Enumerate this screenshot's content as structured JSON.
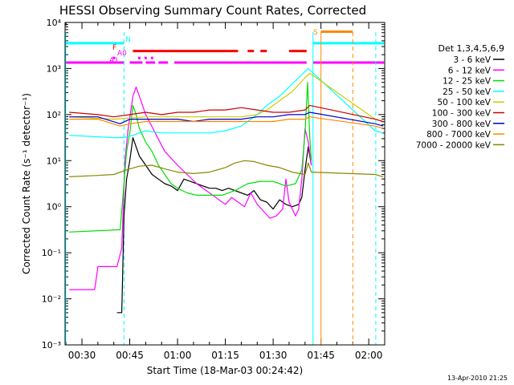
{
  "chart_data": {
    "type": "line",
    "title": "HESSI Observing Summary Count Rates, Corrected",
    "xlabel": "Start Time (18-Mar-03 00:24:42)",
    "ylabel": "Corrected Count Rate (s⁻¹ detector⁻¹)",
    "footer": "13-Apr-2010 21:25",
    "x_unit": "minutes",
    "xlim": [
      24.7,
      125
    ],
    "ylim": [
      -3,
      4
    ],
    "y_scale": "log",
    "y_ticks": [
      {
        "exp": -3,
        "label": "10⁻³"
      },
      {
        "exp": -2,
        "label": "10⁻²"
      },
      {
        "exp": -1,
        "label": "10⁻¹"
      },
      {
        "exp": 0,
        "label": "10⁰"
      },
      {
        "exp": 1,
        "label": "10¹"
      },
      {
        "exp": 2,
        "label": "10²"
      },
      {
        "exp": 3,
        "label": "10³"
      },
      {
        "exp": 4,
        "label": "10⁴"
      }
    ],
    "x_ticks": [
      {
        "x": 30,
        "label": "00:30"
      },
      {
        "x": 45,
        "label": "00:45"
      },
      {
        "x": 60,
        "label": "01:00"
      },
      {
        "x": 75,
        "label": "01:15"
      },
      {
        "x": 90,
        "label": "01:30"
      },
      {
        "x": 105,
        "label": "01:45"
      },
      {
        "x": 120,
        "label": "02:00"
      }
    ],
    "legend": {
      "header": "Det 1,3,4,5,6,9",
      "position": "right"
    },
    "series": [
      {
        "name": "3 - 6 keV",
        "color": "#000000",
        "points": [
          [
            41,
            -2.3
          ],
          [
            42.5,
            -2.3
          ],
          [
            43.2,
            -0.2
          ],
          [
            44,
            0.6
          ],
          [
            45,
            1.0
          ],
          [
            46,
            1.5
          ],
          [
            47,
            1.3
          ],
          [
            48,
            1.1
          ],
          [
            50,
            0.9
          ],
          [
            52,
            0.7
          ],
          [
            54,
            0.6
          ],
          [
            56,
            0.5
          ],
          [
            58,
            0.45
          ],
          [
            60,
            0.35
          ],
          [
            62,
            0.6
          ],
          [
            64,
            0.55
          ],
          [
            66,
            0.5
          ],
          [
            68,
            0.45
          ],
          [
            70,
            0.4
          ],
          [
            72,
            0.4
          ],
          [
            74,
            0.35
          ],
          [
            76,
            0.4
          ],
          [
            78,
            0.35
          ],
          [
            80,
            0.3
          ],
          [
            82,
            0.25
          ],
          [
            84,
            0.35
          ],
          [
            86,
            0.15
          ],
          [
            88,
            0.1
          ],
          [
            90,
            -0.05
          ],
          [
            92,
            0.15
          ],
          [
            94,
            0.05
          ],
          [
            96,
            0.0
          ],
          [
            98,
            0.05
          ],
          [
            99,
            0.2
          ],
          [
            100,
            0.8
          ],
          [
            101,
            1.3
          ],
          [
            102,
            0.9
          ]
        ]
      },
      {
        "name": "6 - 12 keV",
        "color": "#ff00ff",
        "points": [
          [
            26,
            -1.8
          ],
          [
            34,
            -1.8
          ],
          [
            35,
            -1.3
          ],
          [
            41,
            -1.3
          ],
          [
            42.5,
            -0.9
          ],
          [
            43.5,
            1.0
          ],
          [
            44.5,
            1.7
          ],
          [
            46,
            2.4
          ],
          [
            47,
            2.6
          ],
          [
            48,
            2.4
          ],
          [
            50,
            2.0
          ],
          [
            53,
            1.6
          ],
          [
            56,
            1.2
          ],
          [
            60,
            0.9
          ],
          [
            63,
            0.7
          ],
          [
            66,
            0.5
          ],
          [
            69,
            0.35
          ],
          [
            72,
            0.2
          ],
          [
            75,
            0.05
          ],
          [
            77,
            0.2
          ],
          [
            79,
            0.1
          ],
          [
            81,
            0.0
          ],
          [
            83,
            0.3
          ],
          [
            85,
            0.05
          ],
          [
            87,
            -0.1
          ],
          [
            89,
            -0.25
          ],
          [
            91,
            -0.2
          ],
          [
            93,
            -0.05
          ],
          [
            94,
            0.6
          ],
          [
            95,
            0.1
          ],
          [
            97,
            -0.2
          ],
          [
            98,
            -0.05
          ],
          [
            99,
            0.6
          ],
          [
            100,
            1.7
          ],
          [
            101,
            1.4
          ],
          [
            102,
            0.9
          ]
        ]
      },
      {
        "name": "12 - 25 keV",
        "color": "#00dd00",
        "points": [
          [
            26,
            -0.55
          ],
          [
            42,
            -0.5
          ],
          [
            43.2,
            0.5
          ],
          [
            44,
            1.2
          ],
          [
            45,
            1.6
          ],
          [
            46,
            2.2
          ],
          [
            47,
            2.0
          ],
          [
            48,
            1.7
          ],
          [
            50,
            1.4
          ],
          [
            52,
            1.2
          ],
          [
            54,
            0.9
          ],
          [
            56,
            0.7
          ],
          [
            58,
            0.5
          ],
          [
            60,
            0.4
          ],
          [
            63,
            0.3
          ],
          [
            66,
            0.25
          ],
          [
            70,
            0.25
          ],
          [
            74,
            0.25
          ],
          [
            78,
            0.35
          ],
          [
            82,
            0.5
          ],
          [
            86,
            0.55
          ],
          [
            90,
            0.55
          ],
          [
            94,
            0.45
          ],
          [
            97,
            0.5
          ],
          [
            99,
            0.8
          ],
          [
            100,
            1.6
          ],
          [
            100.8,
            2.7
          ],
          [
            101.5,
            1.5
          ],
          [
            102,
            1.0
          ]
        ]
      },
      {
        "name": "25 - 50 keV",
        "color": "#00ffff",
        "points": [
          [
            26,
            1.55
          ],
          [
            40,
            1.5
          ],
          [
            43,
            1.5
          ],
          [
            46,
            1.55
          ],
          [
            50,
            1.65
          ],
          [
            55,
            1.6
          ],
          [
            60,
            1.6
          ],
          [
            65,
            1.6
          ],
          [
            70,
            1.6
          ],
          [
            75,
            1.65
          ],
          [
            80,
            1.75
          ],
          [
            85,
            2.0
          ],
          [
            88,
            2.2
          ],
          [
            92,
            2.4
          ],
          [
            95,
            2.6
          ],
          [
            98,
            2.8
          ],
          [
            101,
            3.0
          ],
          [
            122,
            1.65
          ],
          [
            124.5,
            1.6
          ]
        ]
      },
      {
        "name": "50 - 100 keV",
        "color": "#cccc00",
        "points": [
          [
            26,
            1.95
          ],
          [
            40,
            1.9
          ],
          [
            50,
            1.95
          ],
          [
            60,
            1.95
          ],
          [
            70,
            1.95
          ],
          [
            80,
            1.95
          ],
          [
            85,
            2.0
          ],
          [
            88,
            2.1
          ],
          [
            92,
            2.3
          ],
          [
            96,
            2.5
          ],
          [
            100,
            2.8
          ],
          [
            101.5,
            2.9
          ],
          [
            122,
            1.9
          ],
          [
            124.5,
            1.85
          ]
        ]
      },
      {
        "name": "100 - 300 keV",
        "color": "#cc0000",
        "points": [
          [
            26,
            2.05
          ],
          [
            35,
            2.0
          ],
          [
            40,
            1.95
          ],
          [
            45,
            2.0
          ],
          [
            50,
            2.05
          ],
          [
            55,
            2.0
          ],
          [
            60,
            2.05
          ],
          [
            65,
            2.05
          ],
          [
            70,
            2.1
          ],
          [
            75,
            2.1
          ],
          [
            80,
            2.15
          ],
          [
            85,
            2.1
          ],
          [
            90,
            2.05
          ],
          [
            95,
            2.05
          ],
          [
            100,
            2.1
          ],
          [
            101.5,
            2.2
          ],
          [
            122,
            1.9
          ],
          [
            124.5,
            1.85
          ]
        ]
      },
      {
        "name": "300 - 800 keV",
        "color": "#0000cc",
        "points": [
          [
            26,
            1.95
          ],
          [
            35,
            1.95
          ],
          [
            42,
            1.8
          ],
          [
            45,
            1.9
          ],
          [
            50,
            1.9
          ],
          [
            55,
            1.9
          ],
          [
            60,
            1.9
          ],
          [
            65,
            1.85
          ],
          [
            70,
            1.9
          ],
          [
            75,
            1.9
          ],
          [
            80,
            1.9
          ],
          [
            85,
            1.95
          ],
          [
            90,
            1.95
          ],
          [
            95,
            2.0
          ],
          [
            100,
            2.0
          ],
          [
            101.5,
            2.05
          ],
          [
            122,
            1.8
          ],
          [
            124.5,
            1.75
          ]
        ]
      },
      {
        "name": "800 - 7000 keV",
        "color": "#ff8800",
        "points": [
          [
            26,
            1.9
          ],
          [
            35,
            1.9
          ],
          [
            42,
            1.75
          ],
          [
            45,
            1.8
          ],
          [
            50,
            1.85
          ],
          [
            55,
            1.85
          ],
          [
            60,
            1.85
          ],
          [
            65,
            1.85
          ],
          [
            70,
            1.85
          ],
          [
            75,
            1.85
          ],
          [
            80,
            1.85
          ],
          [
            85,
            1.85
          ],
          [
            90,
            1.85
          ],
          [
            95,
            1.9
          ],
          [
            100,
            1.9
          ],
          [
            101.5,
            1.95
          ],
          [
            122,
            1.75
          ],
          [
            124.5,
            1.7
          ]
        ]
      },
      {
        "name": "7000 - 20000 keV",
        "color": "#888800",
        "points": [
          [
            26,
            0.65
          ],
          [
            35,
            0.68
          ],
          [
            40,
            0.7
          ],
          [
            44,
            0.8
          ],
          [
            48,
            0.88
          ],
          [
            52,
            0.9
          ],
          [
            56,
            0.82
          ],
          [
            60,
            0.75
          ],
          [
            65,
            0.72
          ],
          [
            70,
            0.75
          ],
          [
            75,
            0.85
          ],
          [
            78,
            0.95
          ],
          [
            81,
            1.0
          ],
          [
            84,
            0.98
          ],
          [
            88,
            0.9
          ],
          [
            92,
            0.85
          ],
          [
            96,
            0.75
          ],
          [
            100,
            0.7
          ],
          [
            101,
            0.95
          ],
          [
            102,
            0.75
          ],
          [
            122,
            0.7
          ],
          [
            124.5,
            0.65
          ]
        ]
      }
    ],
    "flag_bars": [
      {
        "label": "N",
        "color": "#00ffff",
        "y_level": 3.55,
        "segments": [
          [
            24.7,
            43.2
          ],
          [
            102.5,
            124.8
          ]
        ]
      },
      {
        "label": "S",
        "color": "#ff8800",
        "y_level": 3.8,
        "segments": [
          [
            105,
            115
          ]
        ]
      },
      {
        "label": "F",
        "color": "#ff0000",
        "y_level": 3.38,
        "segments": [
          [
            46,
            79
          ],
          [
            82,
            84
          ],
          [
            86,
            88
          ],
          [
            95,
            100.5
          ]
        ]
      },
      {
        "label": "A0",
        "color": "#ff00ff",
        "y_level": 3.23,
        "segments": [
          [
            40,
            40
          ],
          [
            48,
            48
          ],
          [
            50,
            50
          ],
          [
            52,
            52
          ]
        ]
      },
      {
        "label": "A1",
        "color": "#ff00ff",
        "y_level": 3.13,
        "segments": [
          [
            24.7,
            43.2
          ],
          [
            45,
            49
          ],
          [
            50,
            53
          ],
          [
            54,
            57
          ],
          [
            59,
            100.5
          ],
          [
            102.5,
            124.8
          ]
        ]
      }
    ],
    "vertical_markers": [
      {
        "x": 43.2,
        "color": "#00ffff",
        "style": "dashed"
      },
      {
        "x": 102.5,
        "color": "#00ffff",
        "style": "solid"
      },
      {
        "x": 105,
        "color": "#ff8800",
        "style": "solid"
      },
      {
        "x": 115,
        "color": "#ff8800",
        "style": "dashed"
      },
      {
        "x": 122.2,
        "color": "#00ffff",
        "style": "dashed"
      },
      {
        "x": 24.9,
        "color": "#00ffff",
        "style": "solid"
      }
    ]
  }
}
